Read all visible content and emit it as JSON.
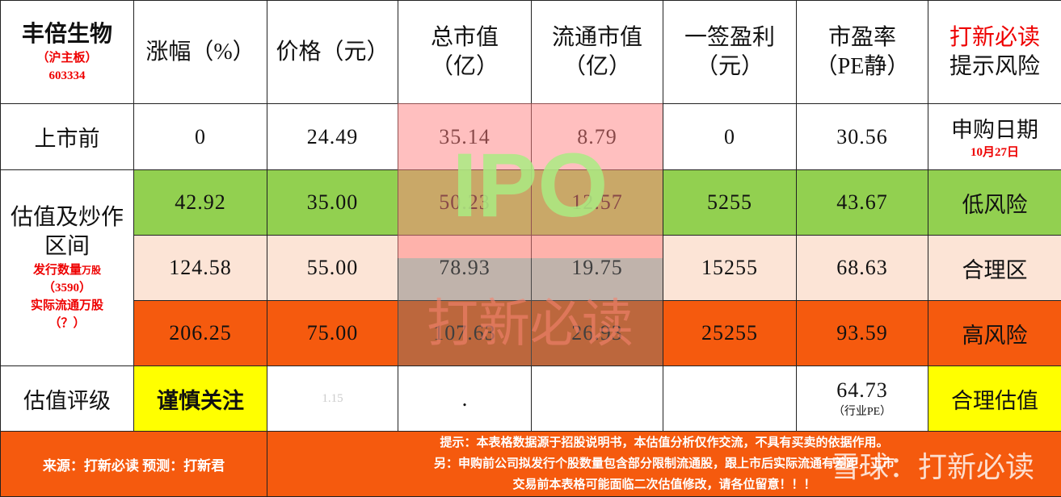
{
  "header": {
    "stock": {
      "name": "丰倍生物",
      "board": "（沪主板）",
      "code": "603334"
    },
    "columns": [
      [
        "涨幅（%）"
      ],
      [
        "价格（元）"
      ],
      [
        "总市值",
        "（亿）"
      ],
      [
        "流通市值",
        "（亿）"
      ],
      [
        "一签盈利",
        "（元）"
      ],
      [
        "市盈率",
        "（PE静）"
      ]
    ],
    "note": [
      "打新必读",
      "提示风险"
    ]
  },
  "pre_listing": {
    "label": "上市前",
    "cells": [
      "0",
      "24.49",
      "35.14",
      "8.79",
      "0",
      "30.56"
    ],
    "note": [
      "申购日期",
      "10月27日"
    ]
  },
  "valuation": {
    "label": [
      "估值及炒作",
      "区间"
    ],
    "issue_label": "发行数量",
    "issue_unit": "万股",
    "issue_value": "（3590）",
    "float_label": "实际流通万股",
    "float_value": "（？）",
    "levels": [
      {
        "cells": [
          "42.92",
          "35.00",
          "50.23",
          "12.57",
          "5255",
          "43.67"
        ],
        "risk": "低风险"
      },
      {
        "cells": [
          "124.58",
          "55.00",
          "78.93",
          "19.75",
          "15255",
          "68.63"
        ],
        "risk": "合理区"
      },
      {
        "cells": [
          "206.25",
          "75.00",
          "107.63",
          "26.93",
          "25255",
          "93.59"
        ],
        "risk": "高风险"
      }
    ]
  },
  "rating": {
    "label": "估值评级",
    "rating": "谨慎关注",
    "ratio": "1.15",
    "dot": ".",
    "industry_pe": "64.73",
    "industry_pe_label": "（行业PE）",
    "verdict": "合理估值"
  },
  "footer": {
    "source": "来源：打新必读  预测：打新君",
    "notes": [
      "提示：本表格数据源于招股说明书，本估值分析仅作交流，不具有买卖的依据作用。",
      "另：申购前公司拟发行个股数量包含部分限制流通股，跟上市后实际流通有差距，上市",
      "交易前本表格可能面临二次估值修改，请各位留意！！！"
    ]
  },
  "watermarks": {
    "center": "IPO",
    "center_sub": "打新必读",
    "corner": "雪球：打新必读"
  }
}
